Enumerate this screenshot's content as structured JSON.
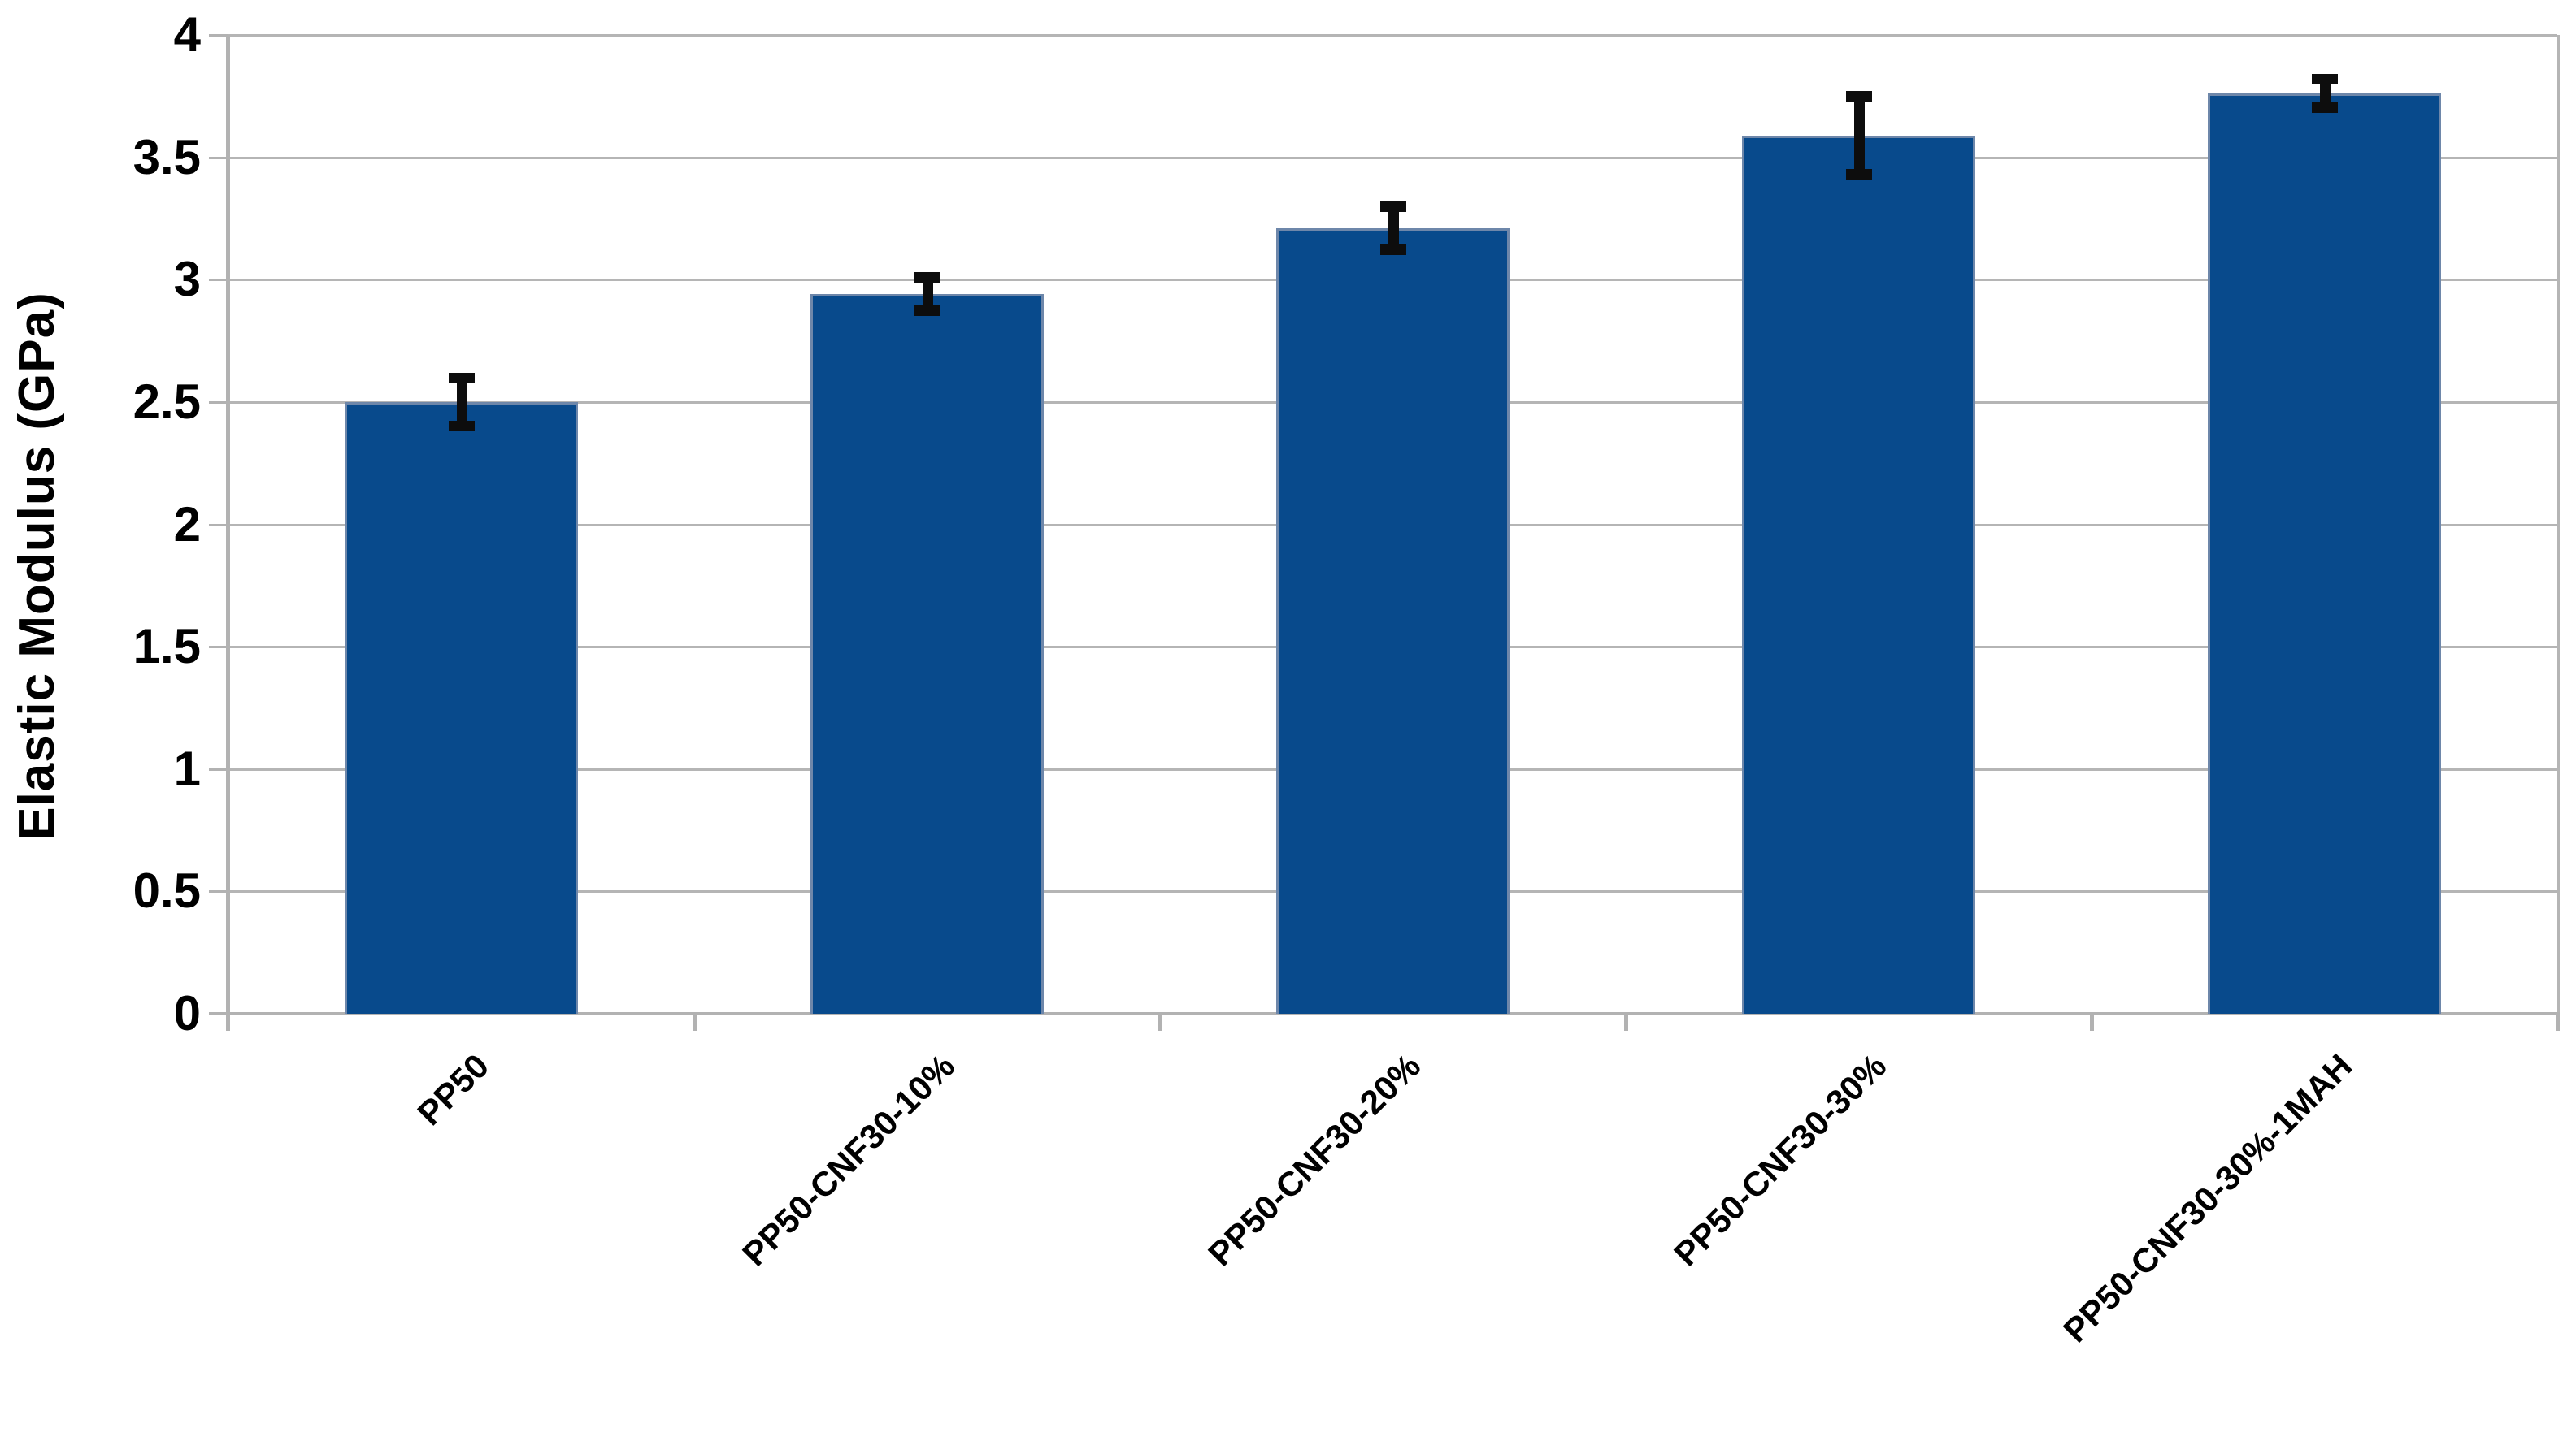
{
  "chart_data": {
    "type": "bar",
    "title": "",
    "xlabel": "",
    "ylabel": "Elastic Modulus (GPa)",
    "categories": [
      "PP50",
      "PP50-CNF30-10%",
      "PP50-CNF30-20%",
      "PP50-CNF30-30%",
      "PP50-CNF30-30%-1MAH"
    ],
    "values": [
      2.5,
      2.94,
      3.21,
      3.59,
      3.76
    ],
    "errors": [
      0.12,
      0.09,
      0.11,
      0.18,
      0.08
    ],
    "ylim": [
      0,
      4
    ],
    "ytick_step": 0.5,
    "ytick_labels": [
      "0",
      "0.5",
      "1",
      "1.5",
      "2",
      "2.5",
      "3",
      "3.5",
      "4"
    ],
    "grid": "horizontal",
    "legend_position": "none",
    "colors": {
      "bar_fill": "#084a8c",
      "bar_border": "#6e87aa",
      "error_bar": "#0d0d0d",
      "gridline": "#b5b5b5",
      "axis_line": "#b2b2b2",
      "text": "#000000",
      "background": "#ffffff"
    }
  }
}
